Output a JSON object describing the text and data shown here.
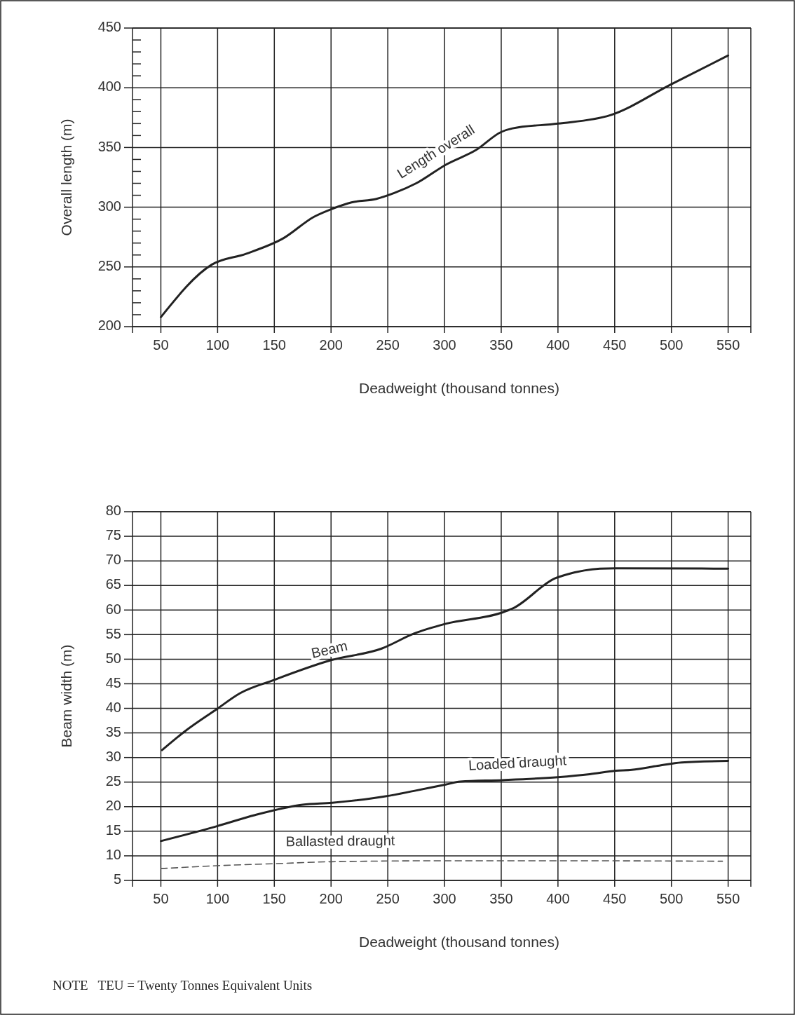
{
  "chart_data": [
    {
      "type": "line",
      "xlabel": "Deadweight (thousand tonnes)",
      "ylabel": "Overall length (m)",
      "xlim": [
        25,
        570
      ],
      "xticks": [
        50,
        100,
        150,
        200,
        250,
        300,
        350,
        400,
        450,
        500,
        550
      ],
      "ylim": [
        200,
        450
      ],
      "yticks": [
        200,
        {
          "value": 210,
          "label": null
        },
        {
          "value": 220,
          "label": null
        },
        {
          "value": 230,
          "label": null
        },
        {
          "value": 240,
          "label": null
        },
        250,
        {
          "value": 260,
          "label": null
        },
        {
          "value": 270,
          "label": null
        },
        {
          "value": 280,
          "label": null
        },
        {
          "value": 290,
          "label": null
        },
        300,
        {
          "value": 310,
          "label": null
        },
        {
          "value": 320,
          "label": null
        },
        {
          "value": 330,
          "label": null
        },
        {
          "value": 340,
          "label": null
        },
        350,
        {
          "value": 360,
          "label": null
        },
        {
          "value": 370,
          "label": null
        },
        {
          "value": 380,
          "label": null
        },
        {
          "value": 390,
          "label": null
        },
        400,
        {
          "value": 410,
          "label": null
        },
        {
          "value": 420,
          "label": null
        },
        {
          "value": 430,
          "label": null
        },
        {
          "value": 440,
          "label": null
        },
        450
      ],
      "grid": true,
      "series": [
        {
          "name": "Length overall",
          "color": "#222222",
          "line_style": "solid",
          "x": [
            50,
            95,
            125,
            158,
            185,
            202,
            218,
            240,
            256,
            275,
            302,
            328,
            350,
            360,
            400,
            446,
            500,
            550
          ],
          "values": [
            208,
            252,
            261,
            274,
            292,
            299,
            304,
            307,
            312,
            320,
            336,
            348,
            363,
            366,
            370,
            377,
            403,
            427
          ]
        }
      ]
    },
    {
      "type": "line",
      "xlabel": "Deadweight (thousand tonnes)",
      "ylabel": "Beam width (m)",
      "xlim": [
        25,
        570
      ],
      "xticks": [
        50,
        100,
        150,
        200,
        250,
        300,
        350,
        400,
        450,
        500,
        550
      ],
      "ylim": [
        5,
        80
      ],
      "yticks": [
        5,
        10,
        15,
        20,
        25,
        30,
        35,
        40,
        45,
        50,
        55,
        60,
        65,
        70,
        75,
        80
      ],
      "grid": true,
      "series": [
        {
          "name": "Beam",
          "color": "#222222",
          "line_style": "solid",
          "x": [
            51,
            71,
            99,
            120,
            150,
            200,
            245,
            273,
            301,
            351,
            360,
            398,
            409,
            437,
            451,
            550
          ],
          "values": [
            31.5,
            35.3,
            39.8,
            43.1,
            45.8,
            49.8,
            52.2,
            55.2,
            57.2,
            59.5,
            60.3,
            66.5,
            67.3,
            68.4,
            68.5,
            68.4
          ]
        },
        {
          "name": "Loaded draught",
          "color": "#222222",
          "line_style": "solid",
          "x": [
            50,
            99,
            133,
            175,
            201,
            248,
            273,
            301,
            314,
            351,
            400,
            428,
            451,
            465,
            488,
            509,
            550
          ],
          "values": [
            13,
            16,
            18.3,
            20.4,
            20.8,
            22.1,
            23.2,
            24.5,
            25.1,
            25.4,
            26,
            26.6,
            27.3,
            27.5,
            28.3,
            29,
            29.3
          ]
        },
        {
          "name": "Ballasted draught",
          "color": "#555555",
          "line_style": "dashed",
          "x": [
            50,
            100,
            150,
            200,
            300,
            400,
            545
          ],
          "values": [
            7.4,
            8.0,
            8.4,
            8.8,
            9.0,
            9.0,
            8.9
          ]
        }
      ],
      "annotations": [
        "NOTE   TEU = Twenty Tonnes Equivalent Units"
      ]
    }
  ]
}
